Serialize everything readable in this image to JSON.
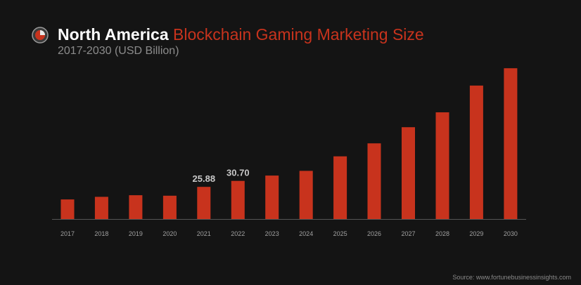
{
  "header": {
    "title_region": "North America",
    "title_rest": "Blockchain Gaming Marketing Size",
    "subtitle": "2017-2030 (USD Billion)",
    "logo_icon": "pie-logo-icon"
  },
  "footer": {
    "source": "Source: www.fortunebusinessinsights.com"
  },
  "colors": {
    "bar": "#c8331d",
    "background": "#141414",
    "axis": "#555555",
    "tick_label": "#a0a0a0",
    "data_label": "#c8c8c8"
  },
  "chart_data": {
    "type": "bar",
    "title": "North America Blockchain Gaming Marketing Size",
    "subtitle": "2017-2030 (USD Billion)",
    "categories": [
      "2017",
      "2018",
      "2019",
      "2020",
      "2021",
      "2022",
      "2023",
      "2024",
      "2025",
      "2026",
      "2027",
      "2028",
      "2029",
      "2030"
    ],
    "values": [
      15.8,
      17.9,
      19.2,
      18.8,
      25.88,
      30.7,
      35.0,
      38.8,
      50.5,
      61.0,
      74.0,
      86.0,
      107.5,
      121.5
    ],
    "data_labels": {
      "2021": "25.88",
      "2022": "30.70"
    },
    "ylim": [
      0,
      125
    ],
    "grid": false,
    "legend": "none",
    "xlabel": "",
    "ylabel": ""
  }
}
